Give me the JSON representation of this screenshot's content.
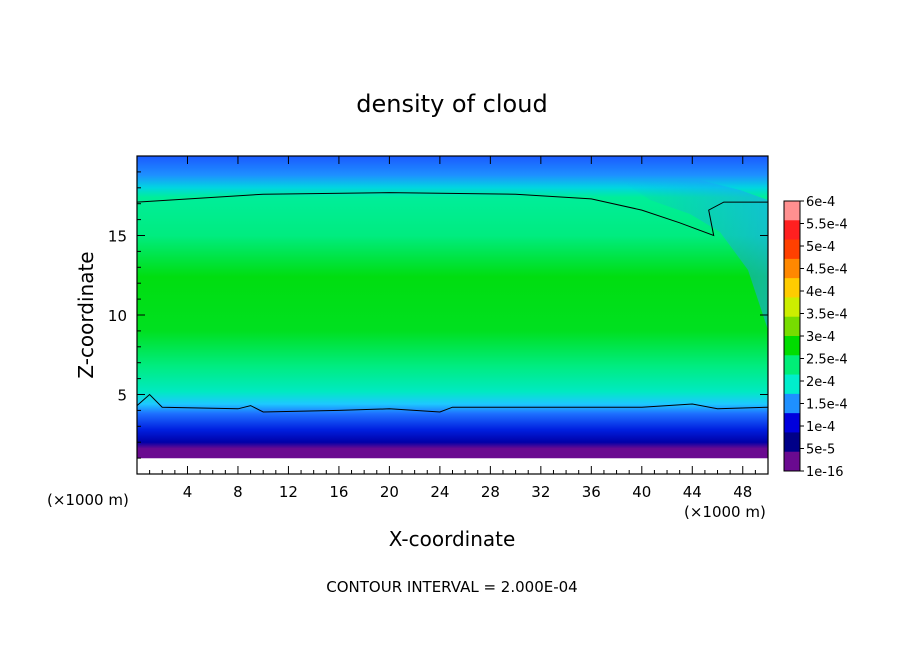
{
  "chart_data": {
    "type": "heatmap",
    "title": "density of cloud",
    "xlabel": "X-coordinate",
    "ylabel": "Z-coordinate",
    "x_units_left": "(×1000 m)",
    "x_units_right": "(×1000 m)",
    "xlim": [
      0,
      50
    ],
    "ylim": [
      0,
      20
    ],
    "x_ticks": [
      4,
      8,
      12,
      16,
      20,
      24,
      28,
      32,
      36,
      40,
      44,
      48
    ],
    "y_ticks": [
      5,
      10,
      15
    ],
    "footer": "CONTOUR INTERVAL = 2.000E-04",
    "colorbar": {
      "labels": [
        "6e-4",
        "5.5e-4",
        "5e-4",
        "4.5e-4",
        "4e-4",
        "3.5e-4",
        "3e-4",
        "2.5e-4",
        "2e-4",
        "1.5e-4",
        "1e-4",
        "5e-5",
        "1e-16"
      ],
      "colors": [
        "#ff9090",
        "#ff2020",
        "#ff4000",
        "#ff8800",
        "#ffcc00",
        "#ccee00",
        "#77dd00",
        "#00dd00",
        "#00ee77",
        "#00eecc",
        "#1e90ff",
        "#0000dd",
        "#000088",
        "#6a0a90"
      ]
    },
    "contour_levels": [
      0.0002
    ],
    "regions": [
      {
        "level": "2e-4 to 2.5e-4",
        "z_range": [
          4.2,
          17.6
        ],
        "description_colors": [
          "#00ee77",
          "#00dd00"
        ]
      },
      {
        "level": "1.5e-4 to 2e-4",
        "z_range": [
          17.2,
          17.8
        ]
      },
      {
        "level": "5e-5 to 1.5e-4",
        "z_range": [
          2,
          4.2
        ]
      },
      {
        "level": "1e-16 to 5e-5",
        "z_range": [
          1.4,
          2
        ]
      }
    ],
    "contour_upper": [
      [
        0,
        17.1
      ],
      [
        10,
        17.6
      ],
      [
        20,
        17.7
      ],
      [
        30,
        17.6
      ],
      [
        36,
        17.3
      ],
      [
        40,
        16.6
      ],
      [
        43,
        15.8
      ],
      [
        45.7,
        15.0
      ],
      [
        45.3,
        16.6
      ],
      [
        46.5,
        17.1
      ],
      [
        50,
        17.1
      ]
    ],
    "contour_lower": [
      [
        0,
        4.3
      ],
      [
        1,
        5.0
      ],
      [
        2,
        4.2
      ],
      [
        8,
        4.1
      ],
      [
        9,
        4.3
      ],
      [
        10,
        3.9
      ],
      [
        16,
        4.0
      ],
      [
        20,
        4.1
      ],
      [
        24,
        3.9
      ],
      [
        25,
        4.2
      ],
      [
        30,
        4.2
      ],
      [
        36,
        4.2
      ],
      [
        40,
        4.2
      ],
      [
        44,
        4.4
      ],
      [
        46,
        4.1
      ],
      [
        50,
        4.2
      ]
    ]
  }
}
